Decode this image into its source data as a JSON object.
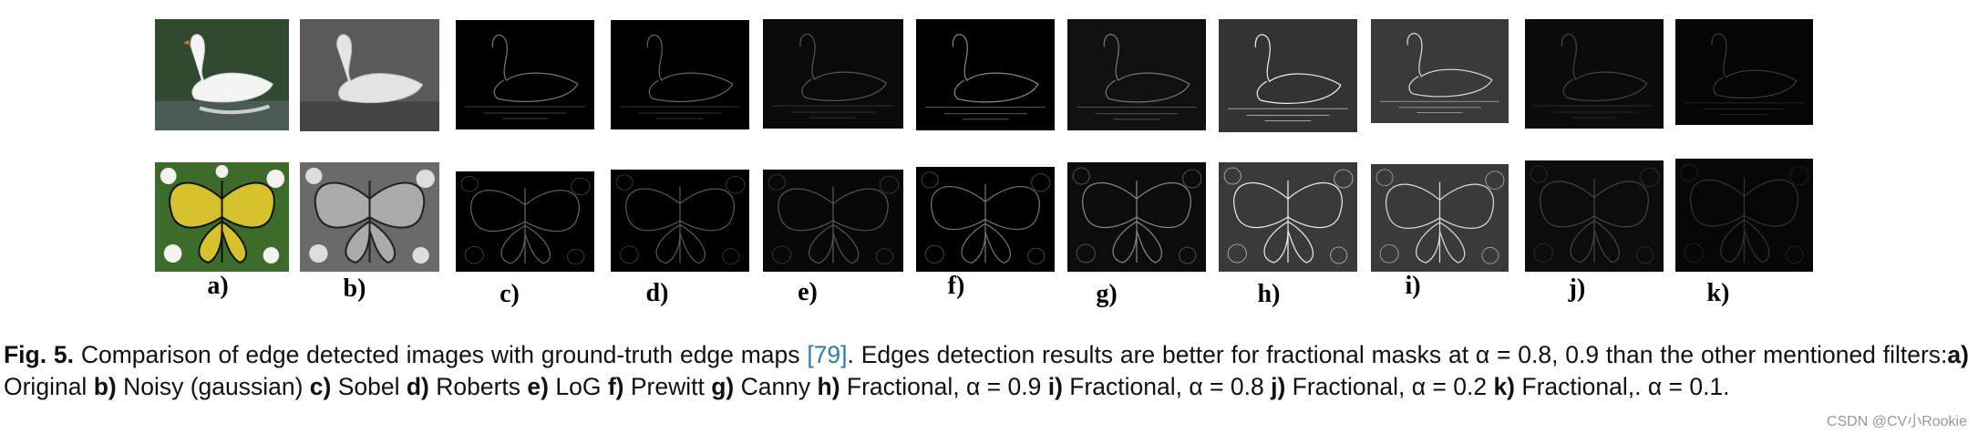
{
  "figure": {
    "panels": [
      {
        "label": "a)"
      },
      {
        "label": "b)"
      },
      {
        "label": "c)"
      },
      {
        "label": "d)"
      },
      {
        "label": "e)"
      },
      {
        "label": "f)"
      },
      {
        "label": "g)"
      },
      {
        "label": "h)"
      },
      {
        "label": "i)"
      },
      {
        "label": "j)"
      },
      {
        "label": "k)"
      }
    ]
  },
  "caption": {
    "runs": [
      {
        "text": "Fig. 5.",
        "style": "bold"
      },
      {
        "text": " Comparison of edge detected images with ground-truth edge maps ",
        "style": "plain"
      },
      {
        "text": "[79]",
        "style": "link"
      },
      {
        "text": ". Edges detection results are better for fractional masks at α = 0.8, 0.9 than the other mentioned filters:",
        "style": "plain"
      },
      {
        "text": "a)",
        "style": "bold"
      },
      {
        "text": " Original ",
        "style": "plain"
      },
      {
        "text": "b)",
        "style": "bold"
      },
      {
        "text": " Noisy (gaussian) ",
        "style": "plain"
      },
      {
        "text": "c)",
        "style": "bold"
      },
      {
        "text": " Sobel ",
        "style": "plain"
      },
      {
        "text": "d)",
        "style": "bold"
      },
      {
        "text": " Roberts ",
        "style": "plain"
      },
      {
        "text": "e)",
        "style": "bold"
      },
      {
        "text": " LoG ",
        "style": "plain"
      },
      {
        "text": "f)",
        "style": "bold"
      },
      {
        "text": " Prewitt ",
        "style": "plain"
      },
      {
        "text": "g)",
        "style": "bold"
      },
      {
        "text": " Canny ",
        "style": "plain"
      },
      {
        "text": "h)",
        "style": "bold"
      },
      {
        "text": " Fractional, α = 0.9 ",
        "style": "plain"
      },
      {
        "text": "i)",
        "style": "bold"
      },
      {
        "text": " Fractional, α = 0.8 ",
        "style": "plain"
      },
      {
        "text": "j)",
        "style": "bold"
      },
      {
        "text": " Fractional, α = 0.2 ",
        "style": "plain"
      },
      {
        "text": "k)",
        "style": "bold"
      },
      {
        "text": " Fractional,. α = 0.1.",
        "style": "plain"
      }
    ]
  },
  "watermark": "CSDN @CV小Rookie"
}
